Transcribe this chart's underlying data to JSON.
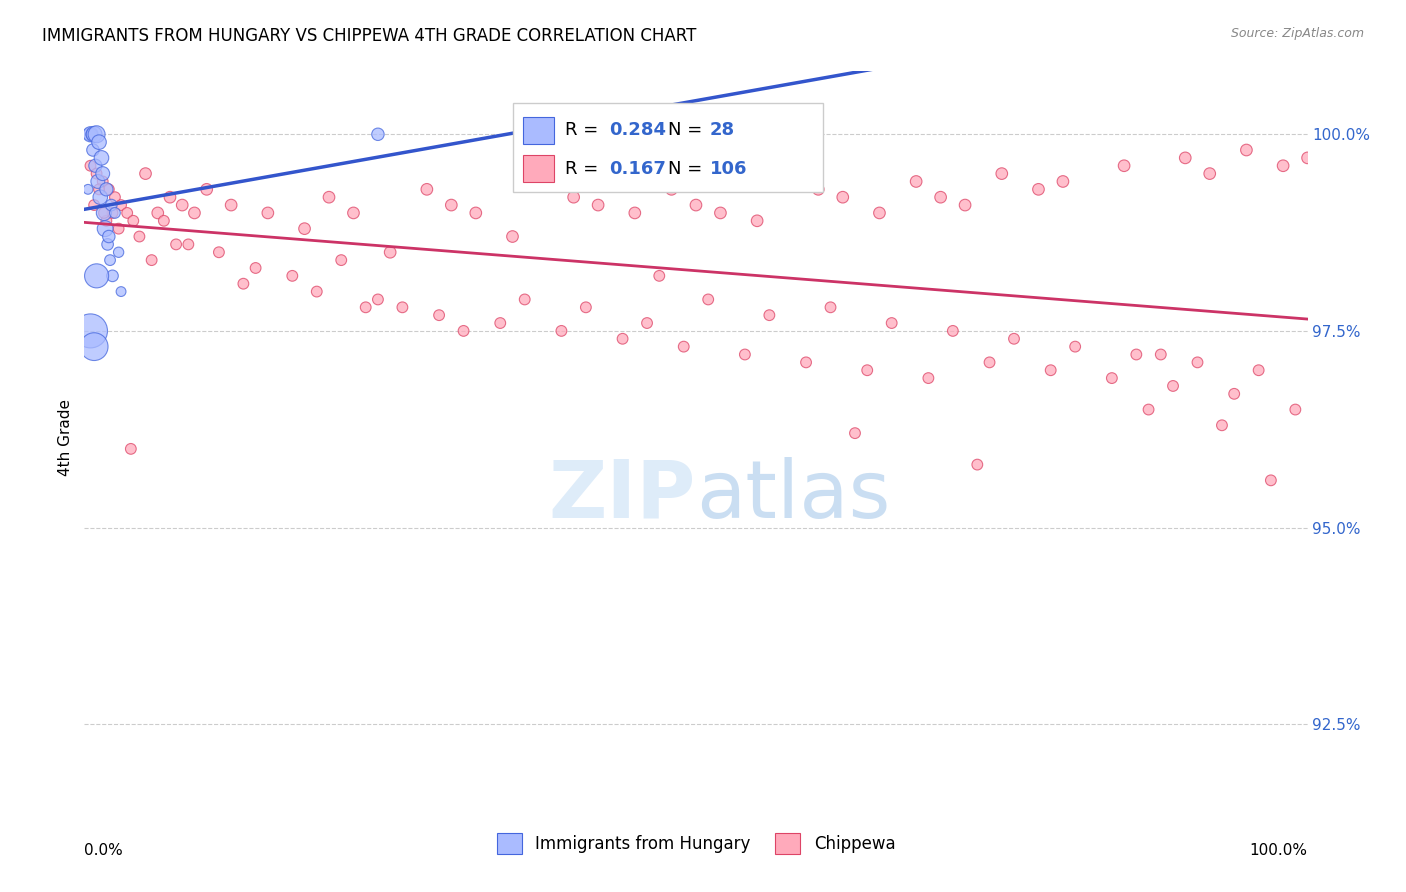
{
  "title": "IMMIGRANTS FROM HUNGARY VS CHIPPEWA 4TH GRADE CORRELATION CHART",
  "source": "Source: ZipAtlas.com",
  "ylabel": "4th Grade",
  "y_ticks": [
    92.5,
    95.0,
    97.5,
    100.0
  ],
  "y_tick_labels": [
    "92.5%",
    "95.0%",
    "97.5%",
    "100.0%"
  ],
  "x_ticks": [
    0.0,
    20.0,
    40.0,
    60.0,
    80.0,
    100.0
  ],
  "x_lim": [
    0.0,
    100.0
  ],
  "y_lim": [
    91.5,
    100.8
  ],
  "blue_R": 0.284,
  "blue_N": 28,
  "pink_R": 0.167,
  "pink_N": 106,
  "blue_color": "#aabbff",
  "pink_color": "#ffaabb",
  "blue_edge_color": "#4466dd",
  "pink_edge_color": "#dd4466",
  "blue_line_color": "#3355cc",
  "pink_line_color": "#cc3366",
  "legend_label_blue": "Immigrants from Hungary",
  "legend_label_pink": "Chippewa",
  "blue_scatter_x": [
    0.4,
    0.5,
    0.6,
    0.7,
    0.8,
    0.9,
    1.0,
    1.1,
    1.2,
    1.3,
    1.4,
    1.5,
    1.6,
    1.7,
    1.8,
    1.9,
    2.0,
    2.1,
    2.2,
    2.3,
    2.5,
    2.8,
    3.0,
    0.5,
    0.8,
    1.0,
    24.0,
    0.3
  ],
  "blue_scatter_y": [
    100.0,
    100.0,
    100.0,
    99.8,
    100.0,
    99.6,
    100.0,
    99.4,
    99.9,
    99.2,
    99.7,
    99.5,
    99.0,
    98.8,
    99.3,
    98.6,
    98.7,
    98.4,
    99.1,
    98.2,
    99.0,
    98.5,
    98.0,
    97.5,
    97.3,
    98.2,
    100.0,
    99.3
  ],
  "blue_scatter_sizes": [
    80,
    120,
    70,
    80,
    130,
    90,
    150,
    100,
    110,
    110,
    110,
    100,
    120,
    130,
    90,
    70,
    80,
    60,
    70,
    70,
    60,
    55,
    50,
    600,
    400,
    300,
    80,
    50
  ],
  "pink_scatter_x": [
    0.5,
    1.0,
    1.5,
    2.0,
    2.5,
    3.0,
    3.5,
    4.0,
    5.0,
    6.0,
    7.0,
    8.0,
    9.0,
    10.0,
    12.0,
    15.0,
    18.0,
    20.0,
    22.0,
    25.0,
    28.0,
    30.0,
    32.0,
    35.0,
    38.0,
    40.0,
    42.0,
    45.0,
    48.0,
    50.0,
    52.0,
    55.0,
    58.0,
    60.0,
    62.0,
    65.0,
    68.0,
    70.0,
    72.0,
    75.0,
    78.0,
    80.0,
    85.0,
    90.0,
    92.0,
    95.0,
    98.0,
    100.0,
    1.2,
    1.8,
    2.3,
    4.5,
    6.5,
    8.5,
    11.0,
    14.0,
    17.0,
    21.0,
    26.0,
    31.0,
    36.0,
    41.0,
    46.0,
    51.0,
    56.0,
    61.0,
    66.0,
    71.0,
    76.0,
    81.0,
    86.0,
    91.0,
    96.0,
    0.8,
    1.6,
    2.8,
    5.5,
    7.5,
    13.0,
    19.0,
    24.0,
    29.0,
    34.0,
    39.0,
    44.0,
    49.0,
    54.0,
    59.0,
    64.0,
    69.0,
    74.0,
    79.0,
    84.0,
    89.0,
    94.0,
    99.0,
    3.8,
    23.0,
    47.0,
    73.0,
    88.0,
    97.0,
    63.0,
    87.0,
    93.0
  ],
  "pink_scatter_y": [
    99.6,
    99.5,
    99.4,
    99.3,
    99.2,
    99.1,
    99.0,
    98.9,
    99.5,
    99.0,
    99.2,
    99.1,
    99.0,
    99.3,
    99.1,
    99.0,
    98.8,
    99.2,
    99.0,
    98.5,
    99.3,
    99.1,
    99.0,
    98.7,
    99.4,
    99.2,
    99.1,
    99.0,
    99.3,
    99.1,
    99.0,
    98.9,
    99.5,
    99.3,
    99.2,
    99.0,
    99.4,
    99.2,
    99.1,
    99.5,
    99.3,
    99.4,
    99.6,
    99.7,
    99.5,
    99.8,
    99.6,
    99.7,
    99.3,
    98.9,
    99.0,
    98.7,
    98.9,
    98.6,
    98.5,
    98.3,
    98.2,
    98.4,
    97.8,
    97.5,
    97.9,
    97.8,
    97.6,
    97.9,
    97.7,
    97.8,
    97.6,
    97.5,
    97.4,
    97.3,
    97.2,
    97.1,
    97.0,
    99.1,
    99.0,
    98.8,
    98.4,
    98.6,
    98.1,
    98.0,
    97.9,
    97.7,
    97.6,
    97.5,
    97.4,
    97.3,
    97.2,
    97.1,
    97.0,
    96.9,
    97.1,
    97.0,
    96.9,
    96.8,
    96.7,
    96.5,
    96.0,
    97.8,
    98.2,
    95.8,
    97.2,
    95.6,
    96.2,
    96.5,
    96.3,
    96.1
  ],
  "pink_scatter_sizes": [
    60,
    60,
    60,
    60,
    60,
    60,
    60,
    60,
    70,
    70,
    70,
    70,
    70,
    70,
    70,
    70,
    70,
    70,
    70,
    70,
    70,
    70,
    70,
    70,
    70,
    70,
    70,
    70,
    70,
    70,
    70,
    70,
    70,
    70,
    70,
    70,
    70,
    70,
    70,
    70,
    70,
    70,
    70,
    70,
    70,
    70,
    70,
    70,
    60,
    60,
    60,
    60,
    60,
    60,
    60,
    60,
    60,
    60,
    60,
    60,
    60,
    60,
    60,
    60,
    60,
    60,
    60,
    60,
    60,
    60,
    60,
    60,
    60,
    60,
    60,
    60,
    60,
    60,
    60,
    60,
    60,
    60,
    60,
    60,
    60,
    60,
    60,
    60,
    60,
    60,
    60,
    60,
    60,
    60,
    60,
    60,
    60,
    60,
    60,
    60,
    60,
    60,
    60,
    60,
    60,
    60
  ]
}
